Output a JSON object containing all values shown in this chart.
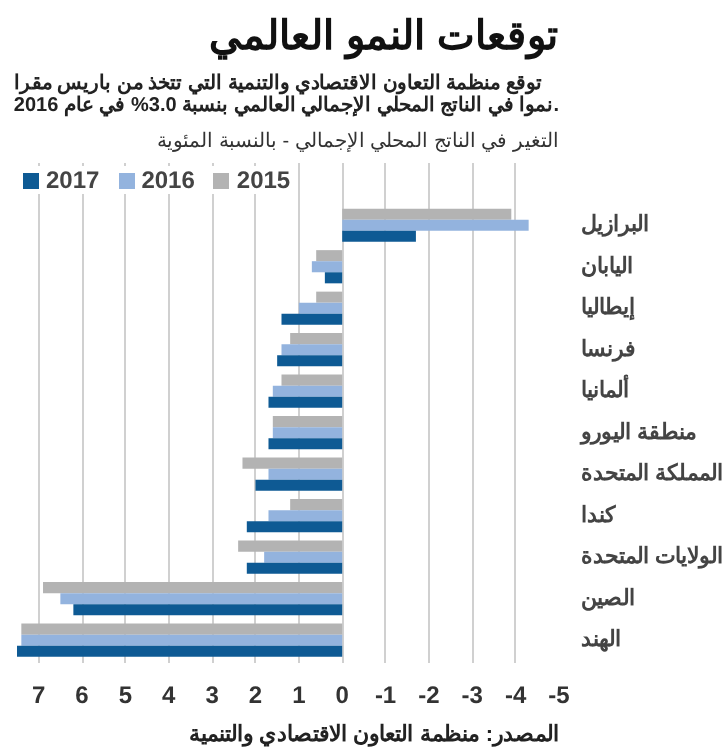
{
  "chart_data": {
    "type": "bar",
    "orientation": "horizontal",
    "title": "توقعات النمو العالمي",
    "subtitle": "توقع منظمة التعاون الاقتصادي والتنمية التي تتخذ من باريس مقرا نموا في الناتج المحلي الإجمالي العالمي بنسبة 3.0% في عام 2016.",
    "xlabel": "التغير في الناتج المحلي الإجمالي - بالنسبة المئوية",
    "categories": [
      "البرازيل",
      "اليابان",
      "إيطاليا",
      "فرنسا",
      "ألمانيا",
      "منطقة اليورو",
      "المملكة المتحدة",
      "كندا",
      "الولايات المتحدة",
      "الصين",
      "الهند"
    ],
    "series": [
      {
        "name": "2015",
        "color": "#b3b3b3",
        "values": [
          -3.9,
          0.6,
          0.6,
          1.2,
          1.4,
          1.6,
          2.3,
          1.2,
          2.4,
          6.9,
          7.4
        ]
      },
      {
        "name": "2016",
        "color": "#93b3de",
        "values": [
          -4.3,
          0.7,
          1.0,
          1.4,
          1.6,
          1.6,
          1.7,
          1.7,
          1.8,
          6.5,
          7.4
        ]
      },
      {
        "name": "2017",
        "color": "#0e5a94",
        "values": [
          -1.7,
          0.4,
          1.4,
          1.5,
          1.7,
          1.7,
          2.0,
          2.2,
          2.2,
          6.2,
          7.5
        ]
      }
    ],
    "xlim": [
      7.5,
      -5
    ],
    "xticks": [
      7,
      6,
      5,
      4,
      3,
      2,
      1,
      0,
      -1,
      -2,
      -3,
      -4,
      -5
    ],
    "grid": "x",
    "legend": "top left",
    "annotations": [
      "المصدر: منظمة التعاون الاقتصادي والتنمية"
    ]
  }
}
